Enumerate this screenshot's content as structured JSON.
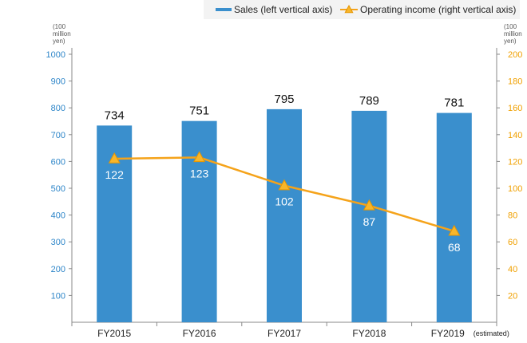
{
  "chart_data": {
    "type": "bar",
    "categories": [
      "FY2015",
      "FY2016",
      "FY2017",
      "FY2018",
      "FY2019"
    ],
    "category_note": "(estimated)",
    "series": [
      {
        "name": "Sales (left vertical axis)",
        "type": "bar",
        "axis": "left",
        "values": [
          734,
          751,
          795,
          789,
          781
        ],
        "color": "#3a8fcd"
      },
      {
        "name": "Operating income (right vertical axis)",
        "type": "line",
        "axis": "right",
        "values": [
          122,
          123,
          102,
          87,
          68
        ],
        "color": "#f5a31a"
      }
    ],
    "left_axis": {
      "unit_lines": [
        "(100",
        "million",
        "yen)"
      ],
      "ylim": [
        0,
        1000
      ],
      "ticks": [
        100,
        200,
        300,
        400,
        500,
        600,
        700,
        800,
        900,
        1000
      ],
      "color": "#2e86c9"
    },
    "right_axis": {
      "unit_lines": [
        "(100",
        "million",
        "yen)"
      ],
      "ylim": [
        0,
        200
      ],
      "ticks": [
        20,
        40,
        60,
        80,
        100,
        120,
        140,
        160,
        180,
        200
      ],
      "color": "#f0a000"
    },
    "legend_position": "top-right",
    "grid": false
  }
}
